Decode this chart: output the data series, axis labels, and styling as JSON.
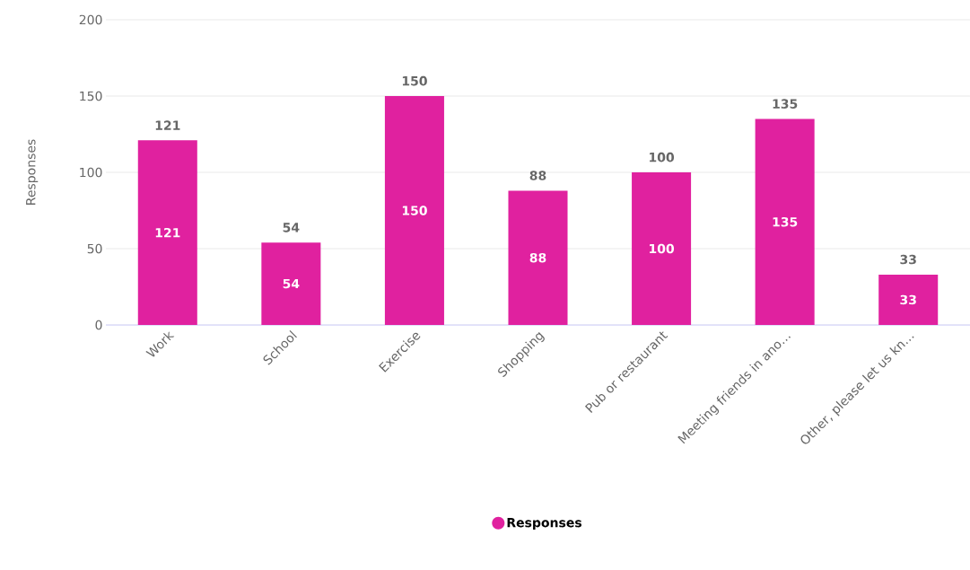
{
  "chart_data": {
    "type": "bar",
    "ylabel": "Responses",
    "categories": [
      "Work",
      "School",
      "Exercise",
      "Shopping",
      "Pub or restaurant",
      "Meeting friends in ano…",
      "Other, please let us kn…"
    ],
    "series": [
      {
        "name": "Responses",
        "color": "#e0219f",
        "values": [
          121,
          54,
          150,
          88,
          100,
          135,
          33
        ]
      }
    ],
    "annotations": [
      "121",
      "54",
      "150",
      "88",
      "100",
      "135",
      "33"
    ],
    "ylim": [
      0,
      200
    ],
    "yticks": [
      0,
      50,
      100,
      150,
      200
    ],
    "grid": "y",
    "legend": "bottom",
    "data_labels": true
  }
}
